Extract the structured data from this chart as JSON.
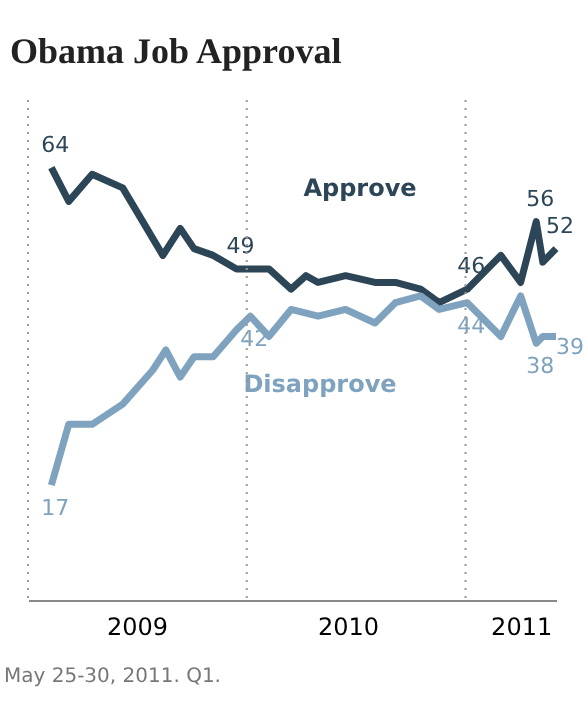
{
  "chart_data": {
    "type": "line",
    "title": "Obama Job Approval",
    "xlim": [
      "2009-01-01",
      "2011-06-01"
    ],
    "ylim": [
      0,
      74
    ],
    "xticks": [
      {
        "value": "2009-07-01",
        "label": "2009"
      },
      {
        "value": "2010-06-18",
        "label": "2010"
      },
      {
        "value": "2011-04-03",
        "label": "2011"
      }
    ],
    "tick_labels": "x",
    "grid": false,
    "marker": "none",
    "line_style": "solid",
    "ref_lines": [
      {
        "axis": "x",
        "value": "2009-01-01",
        "color": "#999999",
        "line_style": "dotted"
      },
      {
        "axis": "x",
        "value": "2010-01-01",
        "color": "#999999",
        "line_style": "dotted"
      },
      {
        "axis": "x",
        "value": "2011-01-01",
        "color": "#999999",
        "line_style": "dotted"
      }
    ],
    "series": [
      {
        "name": "Approve",
        "color": "#2d4657",
        "x": [
          "2009-02-09",
          "2009-03-10",
          "2009-04-18",
          "2009-06-08",
          "2009-08-14",
          "2009-09-12",
          "2009-10-05",
          "2009-11-06",
          "2009-12-15",
          "2010-02-07",
          "2010-03-16",
          "2010-04-10",
          "2010-04-30",
          "2010-06-15",
          "2010-08-03",
          "2010-09-06",
          "2010-10-18",
          "2010-11-18",
          "2011-01-04",
          "2011-03-01",
          "2011-04-03",
          "2011-04-29",
          "2011-05-10",
          "2011-06-01"
        ],
        "values": [
          64,
          59,
          63,
          61,
          51,
          55,
          52,
          51,
          49,
          49,
          46,
          48,
          47,
          48,
          47,
          47,
          46,
          44,
          46,
          51,
          47,
          56,
          50,
          52
        ],
        "value_labels": [
          "64",
          null,
          null,
          null,
          null,
          null,
          null,
          null,
          "49",
          null,
          null,
          null,
          null,
          null,
          null,
          null,
          null,
          null,
          "46",
          null,
          null,
          "56",
          null,
          "52"
        ]
      },
      {
        "name": "Disapprove",
        "color": "#7fa3bf",
        "x": [
          "2009-02-09",
          "2009-03-10",
          "2009-04-18",
          "2009-06-08",
          "2009-07-28",
          "2009-08-19",
          "2009-09-12",
          "2009-10-05",
          "2009-11-06",
          "2009-12-15",
          "2010-01-07",
          "2010-02-07",
          "2010-03-16",
          "2010-04-30",
          "2010-06-15",
          "2010-08-03",
          "2010-09-06",
          "2010-10-18",
          "2010-11-18",
          "2011-01-04",
          "2011-03-01",
          "2011-04-03",
          "2011-04-29",
          "2011-05-10",
          "2011-06-01"
        ],
        "values": [
          17,
          26,
          26,
          29,
          34,
          37,
          33,
          36,
          36,
          40,
          42,
          39,
          43,
          42,
          43,
          41,
          44,
          45,
          43,
          44,
          39,
          45,
          38,
          39,
          39
        ],
        "value_labels": [
          "17",
          null,
          null,
          null,
          null,
          null,
          null,
          null,
          null,
          null,
          "42",
          null,
          null,
          null,
          null,
          null,
          null,
          null,
          null,
          "44",
          null,
          null,
          "38",
          null,
          "39"
        ]
      }
    ],
    "annotations": [
      "May 25-30, 2011. Q1."
    ]
  }
}
